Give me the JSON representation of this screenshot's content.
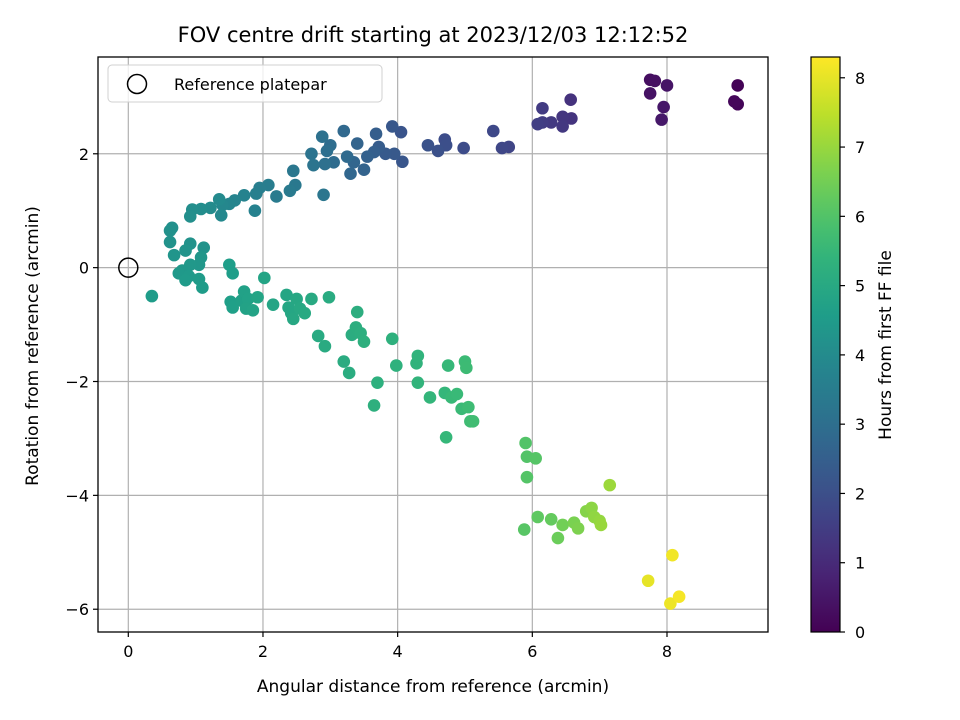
{
  "chart_data": {
    "type": "scatter",
    "title": "FOV centre drift starting at 2023/12/03 12:12:52",
    "xlabel": "Angular distance from reference (arcmin)",
    "ylabel": "Rotation from reference (arcmin)",
    "xlim": [
      -0.45,
      9.5
    ],
    "ylim": [
      -6.4,
      3.7
    ],
    "xticks": [
      0,
      2,
      4,
      6,
      8
    ],
    "yticks": [
      -6,
      -4,
      -2,
      0,
      2
    ],
    "grid": true,
    "legend": {
      "location": "upper-left",
      "entries": [
        "Reference platepar"
      ]
    },
    "reference_point": {
      "x": 0,
      "y": 0,
      "label": "Reference platepar"
    },
    "colorbar": {
      "label": "Hours from first FF file",
      "colormap": "viridis",
      "range": [
        0,
        8.3
      ],
      "ticks": [
        0,
        1,
        2,
        3,
        4,
        5,
        6,
        7,
        8
      ]
    },
    "points": [
      {
        "x": 9.05,
        "y": 3.2,
        "h": 0.05
      },
      {
        "x": 9.05,
        "y": 2.87,
        "h": 0.1
      },
      {
        "x": 9.0,
        "y": 2.92,
        "h": 0.15
      },
      {
        "x": 7.75,
        "y": 3.3,
        "h": 0.3
      },
      {
        "x": 7.82,
        "y": 3.28,
        "h": 0.35
      },
      {
        "x": 7.75,
        "y": 3.06,
        "h": 0.4
      },
      {
        "x": 8.0,
        "y": 3.2,
        "h": 0.45
      },
      {
        "x": 7.95,
        "y": 2.82,
        "h": 0.5
      },
      {
        "x": 7.92,
        "y": 2.6,
        "h": 0.55
      },
      {
        "x": 6.57,
        "y": 2.95,
        "h": 1.2
      },
      {
        "x": 6.58,
        "y": 2.62,
        "h": 1.25
      },
      {
        "x": 6.45,
        "y": 2.65,
        "h": 1.3
      },
      {
        "x": 6.45,
        "y": 2.48,
        "h": 1.35
      },
      {
        "x": 6.28,
        "y": 2.55,
        "h": 1.4
      },
      {
        "x": 6.15,
        "y": 2.8,
        "h": 1.45
      },
      {
        "x": 6.15,
        "y": 2.55,
        "h": 1.5
      },
      {
        "x": 6.08,
        "y": 2.52,
        "h": 1.55
      },
      {
        "x": 5.65,
        "y": 2.12,
        "h": 1.7
      },
      {
        "x": 5.55,
        "y": 2.1,
        "h": 1.75
      },
      {
        "x": 5.42,
        "y": 2.4,
        "h": 1.8
      },
      {
        "x": 4.98,
        "y": 2.1,
        "h": 1.9
      },
      {
        "x": 4.7,
        "y": 2.25,
        "h": 1.95
      },
      {
        "x": 4.72,
        "y": 2.15,
        "h": 2.0
      },
      {
        "x": 4.6,
        "y": 2.05,
        "h": 2.05
      },
      {
        "x": 4.45,
        "y": 2.15,
        "h": 2.1
      },
      {
        "x": 4.05,
        "y": 2.38,
        "h": 2.15
      },
      {
        "x": 4.07,
        "y": 1.86,
        "h": 2.2
      },
      {
        "x": 3.92,
        "y": 2.48,
        "h": 2.25
      },
      {
        "x": 3.95,
        "y": 2.0,
        "h": 2.3
      },
      {
        "x": 3.82,
        "y": 2.0,
        "h": 2.35
      },
      {
        "x": 3.72,
        "y": 2.12,
        "h": 2.4
      },
      {
        "x": 3.68,
        "y": 2.35,
        "h": 2.45
      },
      {
        "x": 3.65,
        "y": 2.03,
        "h": 2.5
      },
      {
        "x": 3.55,
        "y": 1.95,
        "h": 2.55
      },
      {
        "x": 3.5,
        "y": 1.72,
        "h": 2.6
      },
      {
        "x": 3.4,
        "y": 2.18,
        "h": 2.65
      },
      {
        "x": 3.35,
        "y": 1.85,
        "h": 2.7
      },
      {
        "x": 3.3,
        "y": 1.65,
        "h": 2.75
      },
      {
        "x": 3.2,
        "y": 2.4,
        "h": 2.8
      },
      {
        "x": 3.25,
        "y": 1.95,
        "h": 2.85
      },
      {
        "x": 3.05,
        "y": 1.85,
        "h": 2.9
      },
      {
        "x": 3.0,
        "y": 2.15,
        "h": 2.95
      },
      {
        "x": 2.95,
        "y": 2.05,
        "h": 3.0
      },
      {
        "x": 2.92,
        "y": 1.82,
        "h": 3.05
      },
      {
        "x": 2.88,
        "y": 2.3,
        "h": 3.1
      },
      {
        "x": 2.72,
        "y": 2.0,
        "h": 3.15
      },
      {
        "x": 2.75,
        "y": 1.8,
        "h": 3.2
      },
      {
        "x": 2.9,
        "y": 1.28,
        "h": 3.25
      },
      {
        "x": 2.45,
        "y": 1.7,
        "h": 3.3
      },
      {
        "x": 2.48,
        "y": 1.45,
        "h": 3.35
      },
      {
        "x": 2.4,
        "y": 1.35,
        "h": 3.4
      },
      {
        "x": 2.2,
        "y": 1.25,
        "h": 3.45
      },
      {
        "x": 2.08,
        "y": 1.45,
        "h": 3.5
      },
      {
        "x": 1.95,
        "y": 1.4,
        "h": 3.55
      },
      {
        "x": 1.9,
        "y": 1.3,
        "h": 3.6
      },
      {
        "x": 1.88,
        "y": 1.0,
        "h": 3.65
      },
      {
        "x": 1.72,
        "y": 1.27,
        "h": 3.7
      },
      {
        "x": 1.58,
        "y": 1.18,
        "h": 3.75
      },
      {
        "x": 1.5,
        "y": 1.12,
        "h": 3.8
      },
      {
        "x": 1.4,
        "y": 1.1,
        "h": 3.85
      },
      {
        "x": 1.38,
        "y": 0.92,
        "h": 3.9
      },
      {
        "x": 1.35,
        "y": 1.2,
        "h": 3.95
      },
      {
        "x": 1.22,
        "y": 1.05,
        "h": 4.0
      },
      {
        "x": 1.08,
        "y": 1.03,
        "h": 4.05
      },
      {
        "x": 0.95,
        "y": 1.02,
        "h": 4.1
      },
      {
        "x": 0.92,
        "y": 0.9,
        "h": 4.12
      },
      {
        "x": 0.65,
        "y": 0.7,
        "h": 4.15
      },
      {
        "x": 0.62,
        "y": 0.65,
        "h": 4.18
      },
      {
        "x": 0.62,
        "y": 0.45,
        "h": 4.2
      },
      {
        "x": 0.92,
        "y": 0.42,
        "h": 4.22
      },
      {
        "x": 1.12,
        "y": 0.35,
        "h": 4.25
      },
      {
        "x": 0.85,
        "y": 0.3,
        "h": 4.28
      },
      {
        "x": 0.68,
        "y": 0.22,
        "h": 4.3
      },
      {
        "x": 1.08,
        "y": 0.18,
        "h": 4.35
      },
      {
        "x": 1.05,
        "y": 0.05,
        "h": 4.38
      },
      {
        "x": 0.92,
        "y": 0.05,
        "h": 4.4
      },
      {
        "x": 0.8,
        "y": -0.05,
        "h": 4.42
      },
      {
        "x": 0.75,
        "y": -0.1,
        "h": 4.45
      },
      {
        "x": 0.9,
        "y": -0.15,
        "h": 4.47
      },
      {
        "x": 0.85,
        "y": -0.22,
        "h": 4.5
      },
      {
        "x": 1.05,
        "y": -0.2,
        "h": 4.52
      },
      {
        "x": 1.1,
        "y": -0.35,
        "h": 4.55
      },
      {
        "x": 0.35,
        "y": -0.5,
        "h": 4.55
      },
      {
        "x": 1.5,
        "y": 0.05,
        "h": 4.6
      },
      {
        "x": 1.55,
        "y": -0.1,
        "h": 4.62
      },
      {
        "x": 1.52,
        "y": -0.6,
        "h": 4.65
      },
      {
        "x": 1.55,
        "y": -0.7,
        "h": 4.67
      },
      {
        "x": 1.68,
        "y": -0.58,
        "h": 4.7
      },
      {
        "x": 1.72,
        "y": -0.42,
        "h": 4.72
      },
      {
        "x": 1.78,
        "y": -0.55,
        "h": 4.75
      },
      {
        "x": 1.75,
        "y": -0.72,
        "h": 4.77
      },
      {
        "x": 1.85,
        "y": -0.75,
        "h": 4.8
      },
      {
        "x": 1.92,
        "y": -0.52,
        "h": 4.82
      },
      {
        "x": 2.02,
        "y": -0.18,
        "h": 4.84
      },
      {
        "x": 2.15,
        "y": -0.65,
        "h": 4.86
      },
      {
        "x": 2.35,
        "y": -0.48,
        "h": 4.88
      },
      {
        "x": 2.38,
        "y": -0.7,
        "h": 4.9
      },
      {
        "x": 2.42,
        "y": -0.8,
        "h": 4.92
      },
      {
        "x": 2.45,
        "y": -0.9,
        "h": 4.94
      },
      {
        "x": 2.5,
        "y": -0.55,
        "h": 4.96
      },
      {
        "x": 2.55,
        "y": -0.72,
        "h": 4.98
      },
      {
        "x": 2.62,
        "y": -0.8,
        "h": 5.0
      },
      {
        "x": 2.72,
        "y": -0.55,
        "h": 5.02
      },
      {
        "x": 2.82,
        "y": -1.2,
        "h": 5.04
      },
      {
        "x": 2.92,
        "y": -1.38,
        "h": 5.06
      },
      {
        "x": 2.98,
        "y": -0.52,
        "h": 5.08
      },
      {
        "x": 3.2,
        "y": -1.65,
        "h": 5.1
      },
      {
        "x": 3.28,
        "y": -1.85,
        "h": 5.12
      },
      {
        "x": 3.32,
        "y": -1.18,
        "h": 5.14
      },
      {
        "x": 3.38,
        "y": -1.05,
        "h": 5.16
      },
      {
        "x": 3.4,
        "y": -0.78,
        "h": 5.18
      },
      {
        "x": 3.45,
        "y": -1.15,
        "h": 5.2
      },
      {
        "x": 3.5,
        "y": -1.3,
        "h": 5.22
      },
      {
        "x": 3.65,
        "y": -2.42,
        "h": 5.24
      },
      {
        "x": 3.7,
        "y": -2.02,
        "h": 5.26
      },
      {
        "x": 3.92,
        "y": -1.25,
        "h": 5.28
      },
      {
        "x": 3.98,
        "y": -1.72,
        "h": 5.3
      },
      {
        "x": 4.28,
        "y": -1.68,
        "h": 5.35
      },
      {
        "x": 4.3,
        "y": -1.55,
        "h": 5.38
      },
      {
        "x": 4.3,
        "y": -2.02,
        "h": 5.4
      },
      {
        "x": 4.48,
        "y": -2.28,
        "h": 5.45
      },
      {
        "x": 4.7,
        "y": -2.2,
        "h": 5.5
      },
      {
        "x": 4.72,
        "y": -2.98,
        "h": 5.52
      },
      {
        "x": 4.75,
        "y": -1.72,
        "h": 5.55
      },
      {
        "x": 4.8,
        "y": -2.28,
        "h": 5.58
      },
      {
        "x": 4.88,
        "y": -2.22,
        "h": 5.6
      },
      {
        "x": 4.95,
        "y": -2.48,
        "h": 5.62
      },
      {
        "x": 5.0,
        "y": -1.65,
        "h": 5.64
      },
      {
        "x": 5.02,
        "y": -1.76,
        "h": 5.66
      },
      {
        "x": 5.05,
        "y": -2.45,
        "h": 5.68
      },
      {
        "x": 5.08,
        "y": -2.7,
        "h": 5.7
      },
      {
        "x": 5.12,
        "y": -2.7,
        "h": 5.72
      },
      {
        "x": 5.9,
        "y": -3.08,
        "h": 6.0
      },
      {
        "x": 5.92,
        "y": -3.32,
        "h": 6.02
      },
      {
        "x": 5.92,
        "y": -3.68,
        "h": 6.04
      },
      {
        "x": 6.05,
        "y": -3.35,
        "h": 6.06
      },
      {
        "x": 5.88,
        "y": -4.6,
        "h": 6.1
      },
      {
        "x": 6.08,
        "y": -4.38,
        "h": 6.2
      },
      {
        "x": 6.28,
        "y": -4.42,
        "h": 6.3
      },
      {
        "x": 6.38,
        "y": -4.75,
        "h": 6.4
      },
      {
        "x": 6.45,
        "y": -4.52,
        "h": 6.5
      },
      {
        "x": 6.62,
        "y": -4.48,
        "h": 6.6
      },
      {
        "x": 6.68,
        "y": -4.58,
        "h": 6.65
      },
      {
        "x": 6.8,
        "y": -4.28,
        "h": 6.75
      },
      {
        "x": 6.88,
        "y": -4.22,
        "h": 6.85
      },
      {
        "x": 6.92,
        "y": -4.38,
        "h": 6.9
      },
      {
        "x": 7.0,
        "y": -4.45,
        "h": 6.95
      },
      {
        "x": 7.02,
        "y": -4.52,
        "h": 7.0
      },
      {
        "x": 7.15,
        "y": -3.82,
        "h": 7.05
      },
      {
        "x": 7.72,
        "y": -5.5,
        "h": 8.0
      },
      {
        "x": 8.05,
        "y": -5.9,
        "h": 8.1
      },
      {
        "x": 8.08,
        "y": -5.05,
        "h": 8.15
      },
      {
        "x": 8.18,
        "y": -5.78,
        "h": 8.2
      }
    ]
  }
}
